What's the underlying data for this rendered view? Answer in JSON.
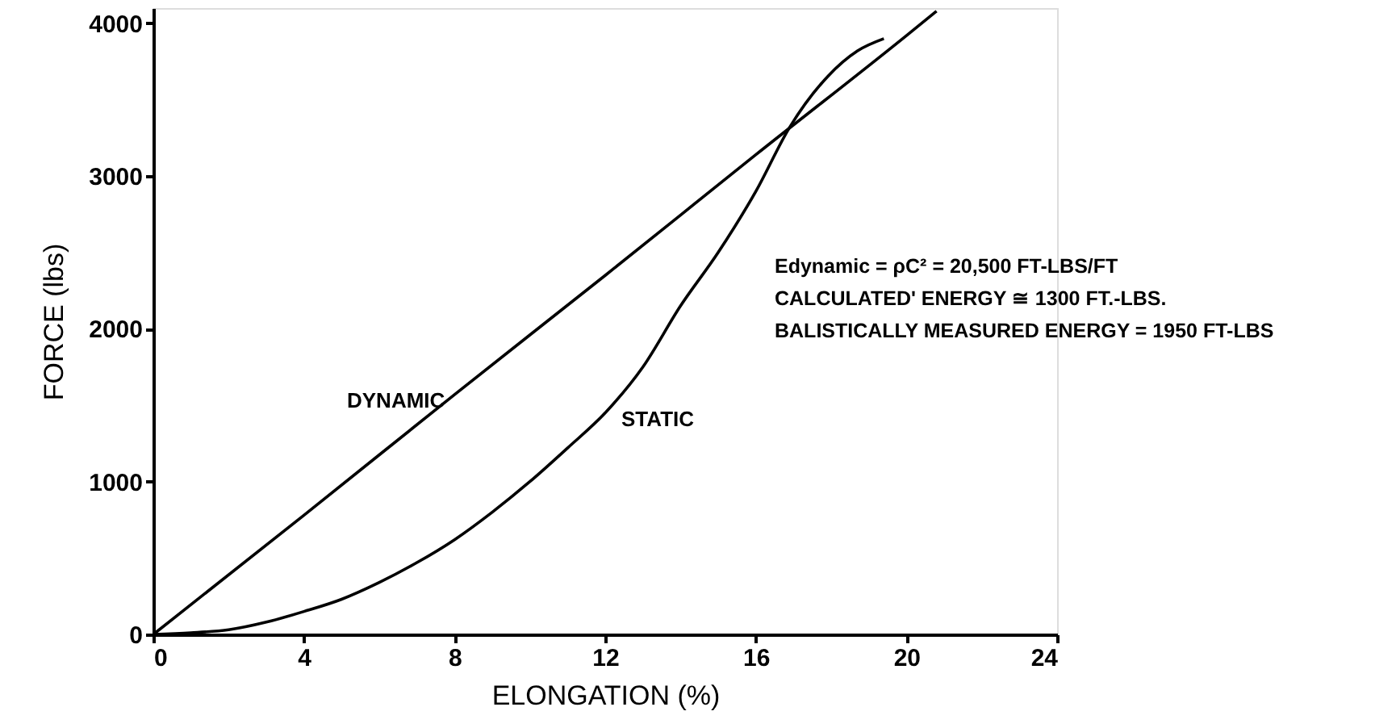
{
  "chart_data": {
    "type": "line",
    "xlabel": "ELONGATION (%)",
    "ylabel": "FORCE (lbs)",
    "xlim": [
      0,
      24
    ],
    "xticks": [
      0,
      4,
      8,
      12,
      16,
      20,
      24
    ],
    "ylim": [
      0,
      4100
    ],
    "yticks": [
      0,
      1000,
      2000,
      3000,
      4000
    ],
    "grid": false,
    "marker": "none",
    "line_style": "solid",
    "series": [
      {
        "name": "DYNAMIC",
        "color": "#000000",
        "x": [
          0,
          4,
          8,
          12,
          16,
          20,
          20.8
        ],
        "values": [
          0,
          780,
          1570,
          2350,
          3140,
          3920,
          4080
        ]
      },
      {
        "name": "STATIC",
        "color": "#000000",
        "x": [
          0,
          1,
          2,
          3,
          4,
          5,
          6,
          7,
          8,
          9,
          10,
          11,
          12,
          13,
          14,
          15,
          16,
          16.9,
          17.9,
          18.7,
          19.4
        ],
        "values": [
          0,
          10,
          30,
          80,
          150,
          230,
          340,
          470,
          620,
          800,
          1000,
          1220,
          1450,
          1750,
          2150,
          2500,
          2900,
          3320,
          3650,
          3820,
          3900
        ]
      }
    ],
    "annotations": [
      "Edynamic = ρC² = 20,500 FT-LBS/FT",
      "CALCULATED' ENERGY ≅ 1300 FT.-LBS.",
      "BALISTICALLY  MEASURED ENERGY = 1950 FT-LBS"
    ]
  }
}
